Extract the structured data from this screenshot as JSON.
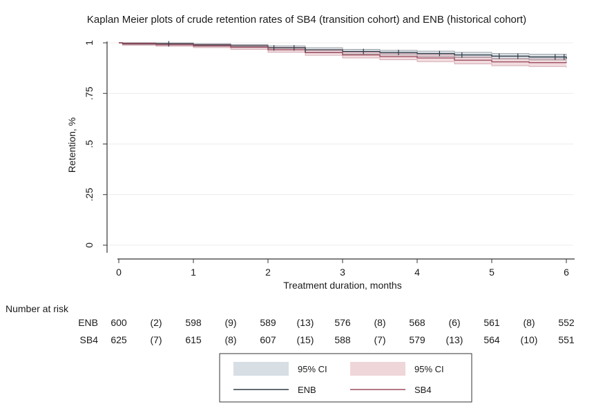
{
  "chart_data": {
    "type": "line",
    "title": "Kaplan Meier plots of crude retention rates of SB4 (transition cohort) and ENB (historical cohort)",
    "xlabel": "Treatment duration, months",
    "ylabel": "Retention, %",
    "xlim": [
      0,
      6
    ],
    "ylim": [
      0,
      1
    ],
    "xticks": [
      "0",
      "1",
      "2",
      "3",
      "4",
      "5",
      "6"
    ],
    "yticks": [
      "0",
      ".25",
      ".5",
      ".75",
      "1"
    ],
    "grid": true,
    "colors": {
      "ENB": "#2e3b45",
      "SB4": "#9e4a5e",
      "ENB_ci": "#d7dee4",
      "SB4_ci": "#efd6d9"
    },
    "series": [
      {
        "name": "ENB",
        "x": [
          0,
          0.05,
          0.5,
          1,
          1.5,
          2,
          2.5,
          3,
          3.5,
          4,
          4.5,
          5,
          5.5,
          6
        ],
        "values": [
          1,
          0.997,
          0.995,
          0.99,
          0.985,
          0.975,
          0.965,
          0.957,
          0.952,
          0.947,
          0.94,
          0.934,
          0.93,
          0.92
        ],
        "ci_lower": [
          1,
          0.992,
          0.99,
          0.983,
          0.977,
          0.965,
          0.954,
          0.945,
          0.94,
          0.934,
          0.926,
          0.92,
          0.915,
          0.905
        ],
        "ci_upper": [
          1,
          1,
          1,
          0.996,
          0.992,
          0.985,
          0.976,
          0.968,
          0.963,
          0.959,
          0.953,
          0.947,
          0.944,
          0.935
        ],
        "censor_marks": [
          0.67,
          2.08,
          2.35,
          2.5,
          3.28,
          3.75,
          4.3,
          4.6,
          5.1,
          5.35,
          5.85,
          5.97
        ]
      },
      {
        "name": "SB4",
        "x": [
          0,
          0.05,
          0.5,
          1,
          1.5,
          2,
          2.5,
          3,
          3.5,
          4,
          4.5,
          5,
          5.5,
          6
        ],
        "values": [
          1,
          0.995,
          0.99,
          0.985,
          0.978,
          0.966,
          0.952,
          0.94,
          0.932,
          0.925,
          0.914,
          0.906,
          0.902,
          0.9
        ],
        "ci_lower": [
          1,
          0.988,
          0.983,
          0.976,
          0.968,
          0.953,
          0.938,
          0.925,
          0.916,
          0.907,
          0.896,
          0.887,
          0.883,
          0.878
        ],
        "ci_upper": [
          1,
          1,
          0.997,
          0.993,
          0.987,
          0.978,
          0.965,
          0.954,
          0.947,
          0.942,
          0.931,
          0.924,
          0.921,
          0.92
        ]
      }
    ],
    "risk_table": {
      "heading": "Number at risk",
      "rows": [
        {
          "label": "ENB",
          "cells": [
            "600",
            "(2)",
            "598",
            "(9)",
            "589",
            "(13)",
            "576",
            "(8)",
            "568",
            "(6)",
            "561",
            "(8)",
            "552"
          ]
        },
        {
          "label": "SB4",
          "cells": [
            "625",
            "(7)",
            "615",
            "(8)",
            "607",
            "(15)",
            "588",
            "(7)",
            "579",
            "(13)",
            "564",
            "(10)",
            "551"
          ]
        }
      ]
    },
    "legend": {
      "placement": "bottom-center",
      "items": [
        {
          "kind": "band",
          "series": "ENB",
          "label": "95% CI"
        },
        {
          "kind": "band",
          "series": "SB4",
          "label": "95% CI"
        },
        {
          "kind": "line",
          "series": "ENB",
          "label": "ENB"
        },
        {
          "kind": "line",
          "series": "SB4",
          "label": "SB4"
        }
      ]
    }
  }
}
